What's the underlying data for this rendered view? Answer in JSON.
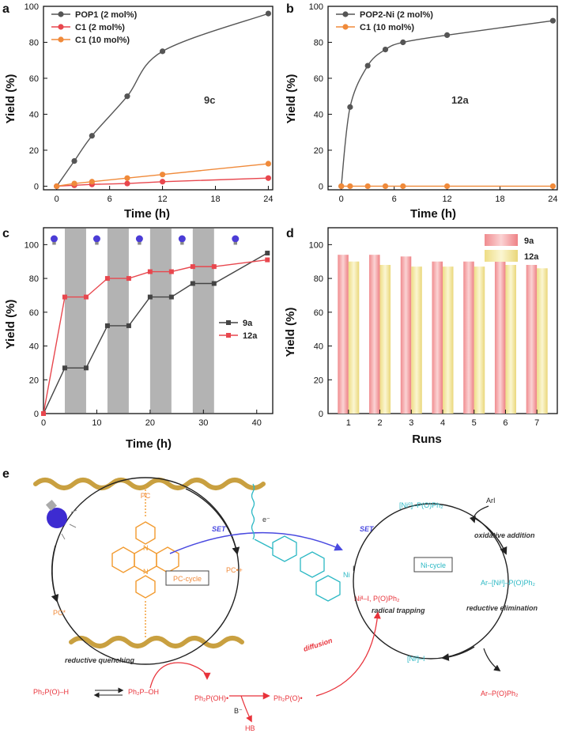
{
  "chart_data": [
    {
      "id": "a",
      "panel_label": "a",
      "type": "line",
      "xlabel": "Time (h)",
      "ylabel": "Yield (%)",
      "xlim": [
        -1.5,
        24.5
      ],
      "ylim": [
        -2,
        100
      ],
      "xticks": [
        0,
        6,
        12,
        18,
        24
      ],
      "yticks": [
        0,
        20,
        40,
        60,
        80,
        100
      ],
      "annotation": "9c",
      "legend_position": "top-left",
      "series": [
        {
          "name": "POP1 (2 mol%)",
          "color": "#555555",
          "curve": "smooth",
          "x": [
            0,
            2,
            4,
            8,
            12,
            24
          ],
          "y": [
            0,
            14,
            28,
            50,
            75,
            96
          ]
        },
        {
          "name": "C1 (2 mol%)",
          "color": "#e8474e",
          "curve": "straight",
          "x": [
            0,
            2,
            4,
            8,
            12,
            24
          ],
          "y": [
            0,
            0.5,
            1,
            1.5,
            2.5,
            4.5
          ]
        },
        {
          "name": "C1 (10 mol%)",
          "color": "#f08a3a",
          "curve": "straight",
          "x": [
            0,
            2,
            4,
            8,
            12,
            24
          ],
          "y": [
            0,
            1.5,
            2.5,
            4.5,
            6.5,
            12.5
          ]
        }
      ]
    },
    {
      "id": "b",
      "panel_label": "b",
      "type": "line",
      "xlabel": "Time (h)",
      "ylabel": "Yield (%)",
      "xlim": [
        -1.5,
        24.5
      ],
      "ylim": [
        -2,
        100
      ],
      "xticks": [
        0,
        6,
        12,
        18,
        24
      ],
      "yticks": [
        0,
        20,
        40,
        60,
        80,
        100
      ],
      "annotation": "12a",
      "legend_position": "top-left",
      "series": [
        {
          "name": "POP2-Ni (2 mol%)",
          "color": "#555555",
          "curve": "smooth",
          "x": [
            0,
            1,
            3,
            5,
            7,
            12,
            24
          ],
          "y": [
            0,
            44,
            67,
            76,
            80,
            84,
            92
          ]
        },
        {
          "name": "C1 (10 mol%)",
          "color": "#f08a3a",
          "curve": "straight",
          "x": [
            0,
            1,
            3,
            5,
            7,
            12,
            24
          ],
          "y": [
            0,
            0,
            0,
            0,
            0,
            0,
            0
          ]
        }
      ]
    },
    {
      "id": "c",
      "panel_label": "c",
      "type": "line",
      "xlabel": "Time (h)",
      "ylabel": "Yield (%)",
      "xlim": [
        0,
        43
      ],
      "ylim": [
        0,
        110
      ],
      "xticks": [
        0,
        10,
        20,
        30,
        40
      ],
      "yticks": [
        0,
        20,
        40,
        60,
        80,
        100
      ],
      "legend_position": "right",
      "dark_intervals": [
        [
          4,
          8
        ],
        [
          12,
          16
        ],
        [
          20,
          24
        ],
        [
          28,
          32
        ]
      ],
      "light_icon_hours": [
        2,
        10,
        18,
        26,
        36
      ],
      "light_icon": "light-bulb-icon",
      "series": [
        {
          "name": "9a",
          "color": "#444444",
          "curve": "straight",
          "x": [
            0,
            4,
            8,
            12,
            16,
            20,
            24,
            28,
            32,
            42
          ],
          "y": [
            0,
            27,
            27,
            52,
            52,
            69,
            69,
            77,
            77,
            95
          ]
        },
        {
          "name": "12a",
          "color": "#e8474e",
          "curve": "straight",
          "x": [
            0,
            4,
            8,
            12,
            16,
            20,
            24,
            28,
            32,
            42
          ],
          "y": [
            0,
            69,
            69,
            80,
            80,
            84,
            84,
            87,
            87,
            91
          ]
        }
      ]
    },
    {
      "id": "d",
      "panel_label": "d",
      "type": "bar",
      "xlabel": "Runs",
      "ylabel": "Yield (%)",
      "ylim": [
        0,
        110
      ],
      "yticks": [
        0,
        20,
        40,
        60,
        80,
        100
      ],
      "categories": [
        "1",
        "2",
        "3",
        "4",
        "5",
        "6",
        "7"
      ],
      "legend_position": "top-right",
      "series": [
        {
          "name": "9a",
          "color": "#f3a7a9",
          "values": [
            94,
            94,
            93,
            90,
            90,
            90,
            88
          ]
        },
        {
          "name": "12a",
          "color": "#f4eaa6",
          "values": [
            90,
            88,
            87,
            87,
            87,
            88,
            86
          ]
        }
      ]
    }
  ],
  "scheme": {
    "panel_label": "e",
    "pc_cycle_label": "PC-cycle",
    "ni_cycle_label": "Ni-cycle",
    "pc_top": "PC",
    "pc_star": "PC*",
    "pc_radical_cation": "PC•+",
    "set_left": "SET",
    "set_right": "SET",
    "electron": "e⁻",
    "reductive_quenching": "reductive quenching",
    "diffusion": "diffusion",
    "radical_trapping": "radical trapping",
    "oxidative_addition": "oxidative addition",
    "reductive_elimination": "reductive elimination",
    "ni_top": "[Ni⁰]–P(O)Ph₂",
    "ni_right": "Ar–[Niᴵᴵ]–P(O)Ph₂",
    "ni_bottom": "[Niᴵ]–I",
    "arl": "ArI",
    "product": "Ar–P(O)Ph₂",
    "reagent1": "Ph₂P(O)–H",
    "reagent2": "Ph₂P–OH",
    "reagent3": "Ph₂P(OH)•",
    "radical": "Ph₂P(O)•",
    "base": "B⁻",
    "hb": "HB",
    "ni_complex_label": "Niᴵᴵ–I, P(O)Ph₂",
    "bulb_icon": "light-bulb-icon"
  }
}
